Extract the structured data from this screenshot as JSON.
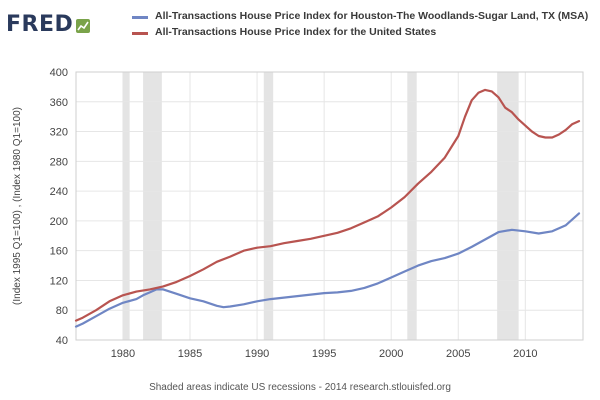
{
  "logo": {
    "text": "FRED"
  },
  "footer": {
    "text": "Shaded areas indicate US recessions - 2014 research.stlouisfed.org"
  },
  "colors": {
    "houston": "#6f86c4",
    "us": "#b85450",
    "recession": "#e4e4e4",
    "grid": "#e6e6e6"
  },
  "chart_data": {
    "type": "line",
    "ylabel": "(Index 1995 Q1=100) , (Index 1980 Q1=100)",
    "xlim": [
      1976.5,
      2014.3
    ],
    "ylim": [
      40,
      400
    ],
    "x_ticks": [
      1980,
      1985,
      1990,
      1995,
      2000,
      2005,
      2010
    ],
    "y_ticks": [
      40,
      80,
      120,
      160,
      200,
      240,
      280,
      320,
      360,
      400
    ],
    "grid": true,
    "legend_position": "top",
    "recessions": [
      [
        1980.0,
        1980.5
      ],
      [
        1981.5,
        1982.9
      ],
      [
        1990.5,
        1991.2
      ],
      [
        2001.2,
        2001.9
      ],
      [
        2007.9,
        2009.5
      ]
    ],
    "series": [
      {
        "name": "All-Transactions House Price Index for Houston-The Woodlands-Sugar Land, TX (MSA)",
        "color": "#6f86c4",
        "x": [
          1976.5,
          1977,
          1978,
          1979,
          1980,
          1981,
          1981.5,
          1982,
          1982.5,
          1983,
          1984,
          1985,
          1986,
          1987,
          1987.5,
          1988,
          1989,
          1990,
          1991,
          1992,
          1993,
          1994,
          1995,
          1996,
          1997,
          1998,
          1999,
          2000,
          2001,
          2002,
          2003,
          2004,
          2005,
          2006,
          2007,
          2008,
          2009,
          2010,
          2011,
          2012,
          2013,
          2014
        ],
        "y": [
          58,
          62,
          72,
          82,
          90,
          95,
          100,
          104,
          108,
          108,
          102,
          96,
          92,
          86,
          84,
          85,
          88,
          92,
          95,
          97,
          99,
          101,
          103,
          104,
          106,
          110,
          116,
          124,
          132,
          140,
          146,
          150,
          156,
          165,
          175,
          185,
          188,
          186,
          183,
          186,
          194,
          210
        ]
      },
      {
        "name": "All-Transactions House Price Index for the United States",
        "color": "#b85450",
        "x": [
          1976.5,
          1977,
          1978,
          1979,
          1980,
          1981,
          1982,
          1983,
          1984,
          1985,
          1986,
          1987,
          1988,
          1989,
          1990,
          1991,
          1992,
          1993,
          1994,
          1995,
          1996,
          1997,
          1998,
          1999,
          2000,
          2001,
          2002,
          2003,
          2004,
          2005,
          2005.5,
          2006,
          2006.5,
          2007,
          2007.5,
          2008,
          2008.5,
          2009,
          2009.5,
          2010,
          2010.5,
          2011,
          2011.5,
          2012,
          2012.5,
          2013,
          2013.5,
          2014
        ],
        "y": [
          66,
          70,
          80,
          92,
          100,
          105,
          108,
          112,
          118,
          126,
          135,
          145,
          152,
          160,
          164,
          166,
          170,
          173,
          176,
          180,
          184,
          190,
          198,
          206,
          218,
          232,
          250,
          266,
          285,
          314,
          340,
          362,
          372,
          376,
          374,
          366,
          352,
          346,
          336,
          328,
          320,
          314,
          312,
          312,
          316,
          322,
          330,
          334
        ]
      }
    ]
  }
}
